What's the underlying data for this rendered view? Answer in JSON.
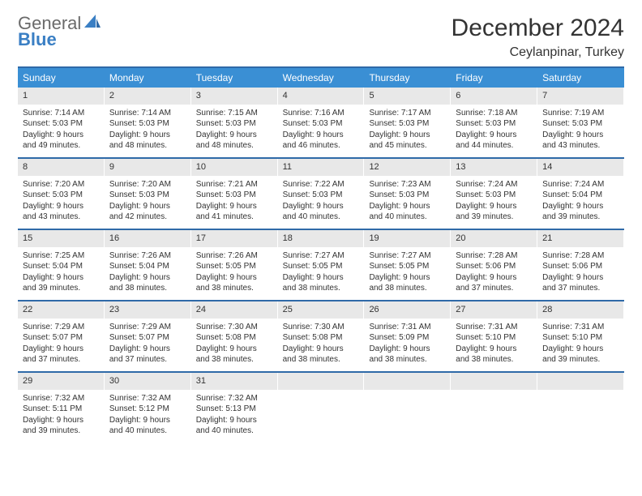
{
  "logo": {
    "text_top": "General",
    "text_bottom": "Blue"
  },
  "header": {
    "month_title": "December 2024",
    "location": "Ceylanpinar, Turkey"
  },
  "colors": {
    "header_bg": "#3a8fd4",
    "header_text": "#ffffff",
    "border": "#2f6aa8",
    "daynum_bg": "#e8e8e8",
    "logo_grey": "#6a6a6a",
    "logo_blue": "#3a7fc4"
  },
  "daynames": [
    "Sunday",
    "Monday",
    "Tuesday",
    "Wednesday",
    "Thursday",
    "Friday",
    "Saturday"
  ],
  "weeks": [
    [
      {
        "n": "1",
        "sr": "Sunrise: 7:14 AM",
        "ss": "Sunset: 5:03 PM",
        "d1": "Daylight: 9 hours",
        "d2": "and 49 minutes."
      },
      {
        "n": "2",
        "sr": "Sunrise: 7:14 AM",
        "ss": "Sunset: 5:03 PM",
        "d1": "Daylight: 9 hours",
        "d2": "and 48 minutes."
      },
      {
        "n": "3",
        "sr": "Sunrise: 7:15 AM",
        "ss": "Sunset: 5:03 PM",
        "d1": "Daylight: 9 hours",
        "d2": "and 48 minutes."
      },
      {
        "n": "4",
        "sr": "Sunrise: 7:16 AM",
        "ss": "Sunset: 5:03 PM",
        "d1": "Daylight: 9 hours",
        "d2": "and 46 minutes."
      },
      {
        "n": "5",
        "sr": "Sunrise: 7:17 AM",
        "ss": "Sunset: 5:03 PM",
        "d1": "Daylight: 9 hours",
        "d2": "and 45 minutes."
      },
      {
        "n": "6",
        "sr": "Sunrise: 7:18 AM",
        "ss": "Sunset: 5:03 PM",
        "d1": "Daylight: 9 hours",
        "d2": "and 44 minutes."
      },
      {
        "n": "7",
        "sr": "Sunrise: 7:19 AM",
        "ss": "Sunset: 5:03 PM",
        "d1": "Daylight: 9 hours",
        "d2": "and 43 minutes."
      }
    ],
    [
      {
        "n": "8",
        "sr": "Sunrise: 7:20 AM",
        "ss": "Sunset: 5:03 PM",
        "d1": "Daylight: 9 hours",
        "d2": "and 43 minutes."
      },
      {
        "n": "9",
        "sr": "Sunrise: 7:20 AM",
        "ss": "Sunset: 5:03 PM",
        "d1": "Daylight: 9 hours",
        "d2": "and 42 minutes."
      },
      {
        "n": "10",
        "sr": "Sunrise: 7:21 AM",
        "ss": "Sunset: 5:03 PM",
        "d1": "Daylight: 9 hours",
        "d2": "and 41 minutes."
      },
      {
        "n": "11",
        "sr": "Sunrise: 7:22 AM",
        "ss": "Sunset: 5:03 PM",
        "d1": "Daylight: 9 hours",
        "d2": "and 40 minutes."
      },
      {
        "n": "12",
        "sr": "Sunrise: 7:23 AM",
        "ss": "Sunset: 5:03 PM",
        "d1": "Daylight: 9 hours",
        "d2": "and 40 minutes."
      },
      {
        "n": "13",
        "sr": "Sunrise: 7:24 AM",
        "ss": "Sunset: 5:03 PM",
        "d1": "Daylight: 9 hours",
        "d2": "and 39 minutes."
      },
      {
        "n": "14",
        "sr": "Sunrise: 7:24 AM",
        "ss": "Sunset: 5:04 PM",
        "d1": "Daylight: 9 hours",
        "d2": "and 39 minutes."
      }
    ],
    [
      {
        "n": "15",
        "sr": "Sunrise: 7:25 AM",
        "ss": "Sunset: 5:04 PM",
        "d1": "Daylight: 9 hours",
        "d2": "and 39 minutes."
      },
      {
        "n": "16",
        "sr": "Sunrise: 7:26 AM",
        "ss": "Sunset: 5:04 PM",
        "d1": "Daylight: 9 hours",
        "d2": "and 38 minutes."
      },
      {
        "n": "17",
        "sr": "Sunrise: 7:26 AM",
        "ss": "Sunset: 5:05 PM",
        "d1": "Daylight: 9 hours",
        "d2": "and 38 minutes."
      },
      {
        "n": "18",
        "sr": "Sunrise: 7:27 AM",
        "ss": "Sunset: 5:05 PM",
        "d1": "Daylight: 9 hours",
        "d2": "and 38 minutes."
      },
      {
        "n": "19",
        "sr": "Sunrise: 7:27 AM",
        "ss": "Sunset: 5:05 PM",
        "d1": "Daylight: 9 hours",
        "d2": "and 38 minutes."
      },
      {
        "n": "20",
        "sr": "Sunrise: 7:28 AM",
        "ss": "Sunset: 5:06 PM",
        "d1": "Daylight: 9 hours",
        "d2": "and 37 minutes."
      },
      {
        "n": "21",
        "sr": "Sunrise: 7:28 AM",
        "ss": "Sunset: 5:06 PM",
        "d1": "Daylight: 9 hours",
        "d2": "and 37 minutes."
      }
    ],
    [
      {
        "n": "22",
        "sr": "Sunrise: 7:29 AM",
        "ss": "Sunset: 5:07 PM",
        "d1": "Daylight: 9 hours",
        "d2": "and 37 minutes."
      },
      {
        "n": "23",
        "sr": "Sunrise: 7:29 AM",
        "ss": "Sunset: 5:07 PM",
        "d1": "Daylight: 9 hours",
        "d2": "and 37 minutes."
      },
      {
        "n": "24",
        "sr": "Sunrise: 7:30 AM",
        "ss": "Sunset: 5:08 PM",
        "d1": "Daylight: 9 hours",
        "d2": "and 38 minutes."
      },
      {
        "n": "25",
        "sr": "Sunrise: 7:30 AM",
        "ss": "Sunset: 5:08 PM",
        "d1": "Daylight: 9 hours",
        "d2": "and 38 minutes."
      },
      {
        "n": "26",
        "sr": "Sunrise: 7:31 AM",
        "ss": "Sunset: 5:09 PM",
        "d1": "Daylight: 9 hours",
        "d2": "and 38 minutes."
      },
      {
        "n": "27",
        "sr": "Sunrise: 7:31 AM",
        "ss": "Sunset: 5:10 PM",
        "d1": "Daylight: 9 hours",
        "d2": "and 38 minutes."
      },
      {
        "n": "28",
        "sr": "Sunrise: 7:31 AM",
        "ss": "Sunset: 5:10 PM",
        "d1": "Daylight: 9 hours",
        "d2": "and 39 minutes."
      }
    ],
    [
      {
        "n": "29",
        "sr": "Sunrise: 7:32 AM",
        "ss": "Sunset: 5:11 PM",
        "d1": "Daylight: 9 hours",
        "d2": "and 39 minutes."
      },
      {
        "n": "30",
        "sr": "Sunrise: 7:32 AM",
        "ss": "Sunset: 5:12 PM",
        "d1": "Daylight: 9 hours",
        "d2": "and 40 minutes."
      },
      {
        "n": "31",
        "sr": "Sunrise: 7:32 AM",
        "ss": "Sunset: 5:13 PM",
        "d1": "Daylight: 9 hours",
        "d2": "and 40 minutes."
      },
      {
        "empty": true
      },
      {
        "empty": true
      },
      {
        "empty": true
      },
      {
        "empty": true
      }
    ]
  ]
}
